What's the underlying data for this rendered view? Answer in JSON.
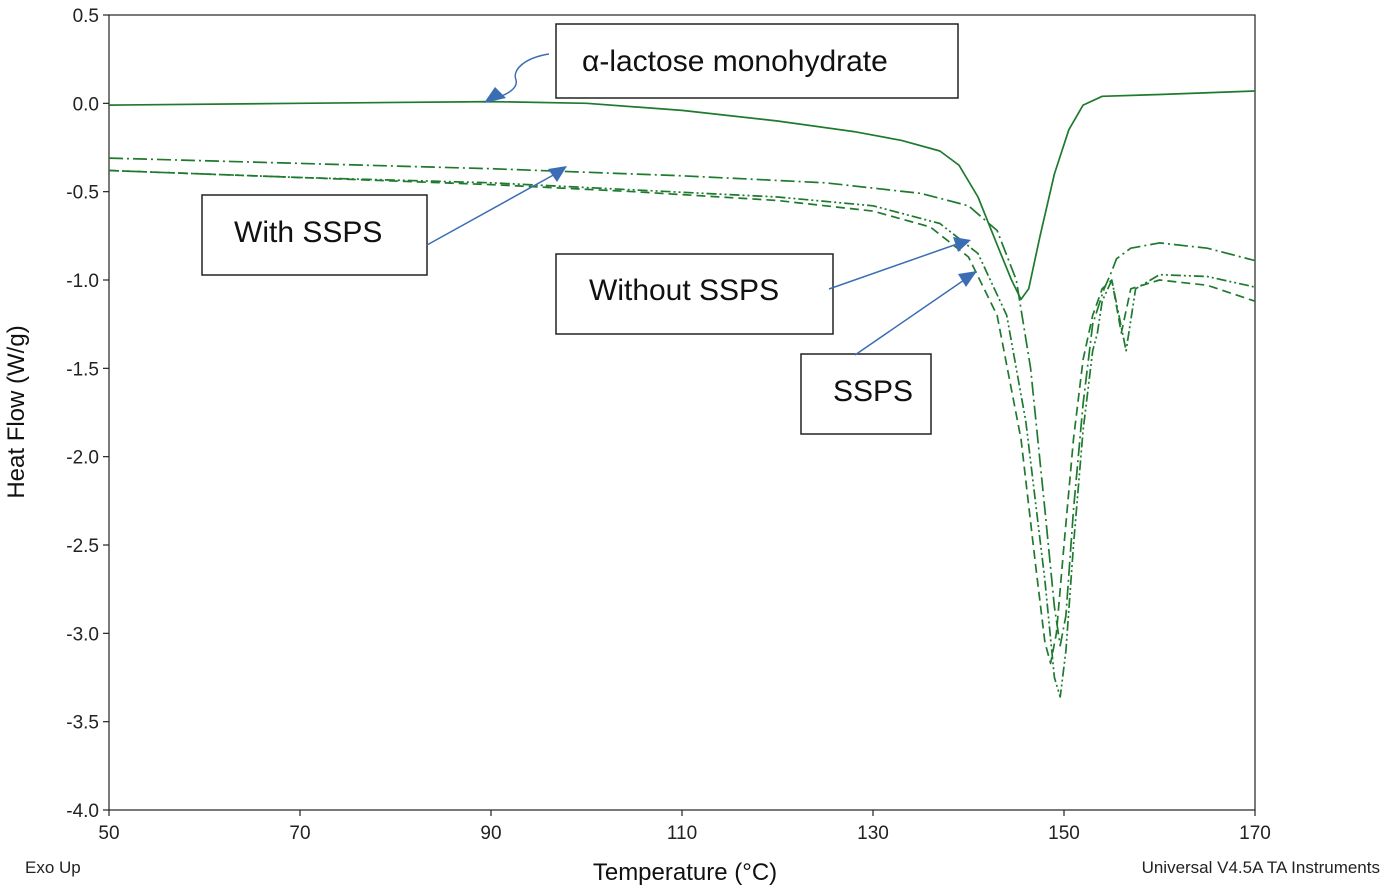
{
  "chart_data": {
    "type": "line",
    "xlabel": "Temperature (°C)",
    "ylabel": "Heat Flow (W/g)",
    "xlim": [
      50,
      170
    ],
    "ylim": [
      -4.0,
      0.5
    ],
    "x_ticks": [
      50,
      70,
      90,
      110,
      130,
      150,
      170
    ],
    "y_ticks": [
      0.5,
      0.0,
      -0.5,
      -1.0,
      -1.5,
      -2.0,
      -2.5,
      -3.0,
      -3.5,
      -4.0
    ],
    "y_tick_labels": [
      "0.5",
      "0.0",
      "-0.5",
      "-1.0",
      "-1.5",
      "-2.0",
      "-2.5",
      "-3.0",
      "-3.5",
      "-4.0"
    ],
    "footer_left": "Exo Up",
    "footer_right": "Universal V4.5A TA Instruments",
    "line_color": "#1e7a2e",
    "arrow_color": "#3b6db5",
    "series": [
      {
        "style": "solid",
        "points": [
          [
            50,
            -0.01
          ],
          [
            70,
            0.0
          ],
          [
            90,
            0.01
          ],
          [
            100,
            0.0
          ],
          [
            110,
            -0.04
          ],
          [
            120,
            -0.1
          ],
          [
            128,
            -0.16
          ],
          [
            133,
            -0.21
          ],
          [
            137,
            -0.27
          ],
          [
            139,
            -0.35
          ],
          [
            141,
            -0.53
          ],
          [
            143,
            -0.8
          ],
          [
            144.5,
            -1.0
          ],
          [
            145.5,
            -1.11
          ],
          [
            146.3,
            -1.05
          ],
          [
            147.5,
            -0.75
          ],
          [
            149,
            -0.4
          ],
          [
            150.5,
            -0.15
          ],
          [
            152,
            -0.01
          ],
          [
            154,
            0.04
          ],
          [
            160,
            0.05
          ],
          [
            170,
            0.07
          ]
        ]
      },
      {
        "style": "dashdot",
        "points": [
          [
            50,
            -0.31
          ],
          [
            70,
            -0.34
          ],
          [
            90,
            -0.37
          ],
          [
            110,
            -0.41
          ],
          [
            125,
            -0.45
          ],
          [
            135,
            -0.51
          ],
          [
            140,
            -0.58
          ],
          [
            143,
            -0.72
          ],
          [
            145,
            -1.0
          ],
          [
            146.5,
            -1.5
          ],
          [
            148,
            -2.3
          ],
          [
            149,
            -2.85
          ],
          [
            149.6,
            -3.07
          ],
          [
            150.2,
            -2.9
          ],
          [
            151,
            -2.3
          ],
          [
            152,
            -1.7
          ],
          [
            153,
            -1.25
          ],
          [
            153.6,
            -1.15
          ],
          [
            154.2,
            -1.05
          ],
          [
            155,
            -0.95
          ],
          [
            155.5,
            -0.88
          ],
          [
            157,
            -0.82
          ],
          [
            160,
            -0.79
          ],
          [
            165,
            -0.82
          ],
          [
            170,
            -0.89
          ]
        ]
      },
      {
        "style": "dashdotdot",
        "points": [
          [
            50,
            -0.38
          ],
          [
            70,
            -0.42
          ],
          [
            90,
            -0.45
          ],
          [
            105,
            -0.49
          ],
          [
            120,
            -0.53
          ],
          [
            130,
            -0.58
          ],
          [
            137,
            -0.68
          ],
          [
            141,
            -0.85
          ],
          [
            144,
            -1.2
          ],
          [
            146,
            -1.8
          ],
          [
            148,
            -2.7
          ],
          [
            149,
            -3.25
          ],
          [
            149.6,
            -3.36
          ],
          [
            150.2,
            -3.1
          ],
          [
            151,
            -2.5
          ],
          [
            152,
            -1.85
          ],
          [
            153,
            -1.4
          ],
          [
            153.5,
            -1.3
          ],
          [
            154,
            -1.12
          ],
          [
            155,
            -1.0
          ],
          [
            156.5,
            -1.4
          ],
          [
            157.5,
            -1.05
          ],
          [
            160,
            -0.97
          ],
          [
            165,
            -0.98
          ],
          [
            170,
            -1.04
          ]
        ]
      },
      {
        "style": "dashed",
        "points": [
          [
            50,
            -0.38
          ],
          [
            70,
            -0.42
          ],
          [
            90,
            -0.46
          ],
          [
            105,
            -0.5
          ],
          [
            120,
            -0.55
          ],
          [
            130,
            -0.61
          ],
          [
            136,
            -0.7
          ],
          [
            140,
            -0.87
          ],
          [
            143,
            -1.2
          ],
          [
            145.5,
            -1.9
          ],
          [
            147,
            -2.6
          ],
          [
            148,
            -3.05
          ],
          [
            148.6,
            -3.17
          ],
          [
            149.2,
            -3.0
          ],
          [
            150,
            -2.5
          ],
          [
            151,
            -1.9
          ],
          [
            152,
            -1.45
          ],
          [
            153,
            -1.2
          ],
          [
            154,
            -1.05
          ],
          [
            155,
            -1.0
          ],
          [
            156,
            -1.3
          ],
          [
            157,
            -1.05
          ],
          [
            160,
            -1.0
          ],
          [
            165,
            -1.03
          ],
          [
            170,
            -1.12
          ]
        ]
      }
    ],
    "annotations": [
      {
        "text": "α-lactose monohydrate"
      },
      {
        "text": "With SSPS"
      },
      {
        "text": "Without SSPS"
      },
      {
        "text": "SSPS"
      }
    ]
  }
}
